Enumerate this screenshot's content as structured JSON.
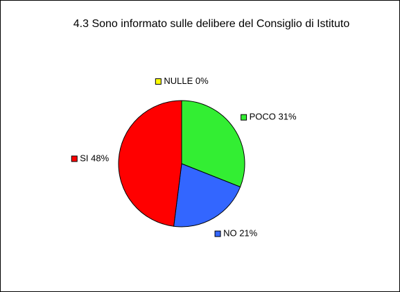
{
  "chart_data": {
    "type": "pie",
    "title": "4.3 Sono informato sulle delibere del Consiglio di Istituto",
    "categories": [
      "POCO",
      "NO",
      "SI",
      "NULLE"
    ],
    "values": [
      31,
      21,
      48,
      0
    ],
    "value_labels": [
      "31%",
      "21%",
      "48%",
      "0%"
    ],
    "colors": [
      "#33ee33",
      "#3366ff",
      "#ff0000",
      "#ffff00"
    ]
  }
}
